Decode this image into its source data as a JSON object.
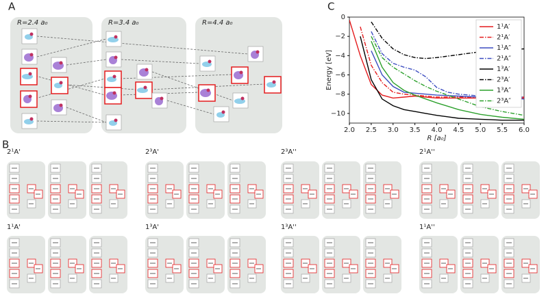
{
  "panel_labels": {
    "a": "A",
    "b": "B",
    "c": "C"
  },
  "panel_a": {
    "geometries": [
      "R=2.4 a₀",
      "R=3.4 a₀",
      "R=4.4 a₀"
    ]
  },
  "panel_b": {
    "states": [
      "2¹A'",
      "2³A'",
      "2³A''",
      "2¹A''",
      "1¹A'",
      "1³A'",
      "1³A''",
      "1¹A''"
    ]
  },
  "chart_data": {
    "type": "line",
    "xlabel": "R [a₀]",
    "ylabel": "Energy [eV]",
    "x": [
      2.0,
      2.25,
      2.5,
      2.75,
      3.0,
      3.25,
      3.5,
      3.75,
      4.0,
      4.25,
      4.5,
      4.75,
      5.0,
      5.25,
      5.5,
      5.75,
      6.0
    ],
    "xlim": [
      2,
      6
    ],
    "xticks": [
      {
        "value": 2,
        "label": "2.0"
      },
      {
        "value": 2.5,
        "label": "2.5"
      },
      {
        "value": 3,
        "label": "3.0"
      },
      {
        "value": 3.5,
        "label": "3.5"
      },
      {
        "value": 4,
        "label": "4.0"
      },
      {
        "value": 4.5,
        "label": "4.5"
      },
      {
        "value": 5,
        "label": "5.0"
      },
      {
        "value": 5.5,
        "label": "5.5"
      },
      {
        "value": 6,
        "label": "6.0"
      }
    ],
    "ylim": [
      -11,
      0
    ],
    "yticks": [
      0,
      {
        "value": -2,
        "label": "−2"
      },
      {
        "value": -4,
        "label": "−4"
      },
      {
        "value": -6,
        "label": "−6"
      },
      {
        "value": -8,
        "label": "−8"
      },
      {
        "value": -10,
        "label": "−10"
      }
    ],
    "legend": "upper right",
    "series": [
      {
        "name": "1¹A′",
        "color": "#e41a1c",
        "linestyle": "solid",
        "values": [
          -0.3,
          -4,
          -7,
          -8.1,
          -8.4,
          -8.3,
          -8.2,
          -8.3,
          -8.4,
          -8.4,
          -8.4,
          -8.4,
          -8.4,
          -8.4,
          -8.4,
          -8.4,
          -8.4
        ]
      },
      {
        "name": "2¹A′",
        "color": "#e41a1c",
        "linestyle": "dashdot",
        "values": [
          null,
          -1,
          -5,
          -6.8,
          -7.8,
          -8.0,
          -8.1,
          -8.2,
          -8.3,
          -8.3,
          -8.3,
          -8.3,
          -8.3,
          -8.3,
          -8.3,
          -8.3,
          -8.3
        ]
      },
      {
        "name": "1¹A″",
        "color": "#3b4cc0",
        "linestyle": "solid",
        "values": [
          null,
          null,
          -3.5,
          -6,
          -7.2,
          -7.8,
          -7.9,
          -8.0,
          -8.1,
          -8.15,
          -8.2,
          -8.25,
          -8.3,
          -8.35,
          -8.4,
          -8.45,
          -8.5
        ]
      },
      {
        "name": "2¹A″",
        "color": "#3b4cc0",
        "linestyle": "dashdot",
        "values": [
          null,
          null,
          -1.5,
          -3.8,
          -4.8,
          -5.2,
          -5.5,
          -6.2,
          -7.3,
          -7.8,
          -8.0,
          -8.1,
          -8.2,
          -8.2,
          -8.25,
          -8.3,
          -8.3
        ]
      },
      {
        "name": "1³A′",
        "color": "#000000",
        "linestyle": "solid",
        "values": [
          null,
          -2,
          -6.5,
          -8.5,
          -9.2,
          -9.6,
          -9.8,
          -10,
          -10.2,
          -10.35,
          -10.5,
          -10.55,
          -10.6,
          -10.65,
          -10.7,
          -10.7,
          -10.7
        ]
      },
      {
        "name": "2³A′",
        "color": "#000000",
        "linestyle": "dashdot",
        "values": [
          null,
          null,
          -0.5,
          -2.2,
          -3.3,
          -3.9,
          -4.2,
          -4.3,
          -4.2,
          -4.05,
          -3.9,
          -3.75,
          -3.6,
          -3.5,
          -3.4,
          -3.35,
          -3.3
        ]
      },
      {
        "name": "1³A″",
        "color": "#2ca02c",
        "linestyle": "solid",
        "values": [
          null,
          null,
          -2.5,
          -5.2,
          -6.8,
          -7.6,
          -8.1,
          -8.5,
          -8.9,
          -9.25,
          -9.6,
          -9.85,
          -10.1,
          -10.25,
          -10.4,
          -10.5,
          -10.6
        ]
      },
      {
        "name": "2³A″",
        "color": "#2ca02c",
        "linestyle": "dashdot",
        "values": [
          null,
          null,
          -2,
          -4.2,
          -5.2,
          -5.9,
          -6.6,
          -7.2,
          -7.7,
          -8.1,
          -8.5,
          -8.9,
          -9.3,
          -9.55,
          -9.8,
          -10.0,
          -10.2
        ]
      }
    ]
  }
}
